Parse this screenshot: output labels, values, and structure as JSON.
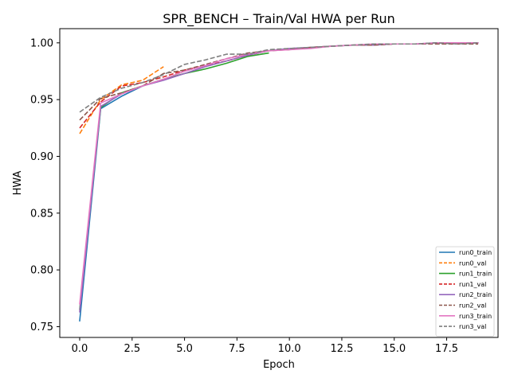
{
  "chart_data": {
    "type": "line",
    "title": "SPR_BENCH – Train/Val HWA per Run",
    "xlabel": "Epoch",
    "ylabel": "HWA",
    "xlim": [
      -0.95,
      19.95
    ],
    "ylim": [
      0.7405,
      1.0125
    ],
    "xticks": [
      0.0,
      2.5,
      5.0,
      7.5,
      10.0,
      12.5,
      15.0,
      17.5
    ],
    "xtick_labels": [
      "0.0",
      "2.5",
      "5.0",
      "7.5",
      "10.0",
      "12.5",
      "15.0",
      "17.5"
    ],
    "yticks": [
      0.75,
      0.8,
      0.85,
      0.9,
      0.95,
      1.0
    ],
    "ytick_labels": [
      "0.75",
      "0.80",
      "0.85",
      "0.90",
      "0.95",
      "1.00"
    ],
    "grid": false,
    "legend_position": "lower-right",
    "series": [
      {
        "name": "run0_train",
        "color": "#1f77b4",
        "dash": "solid",
        "x": [
          0,
          1,
          2,
          3,
          4
        ],
        "y": [
          0.755,
          0.942,
          0.953,
          0.962,
          0.968
        ]
      },
      {
        "name": "run0_val",
        "color": "#ff7f0e",
        "dash": "dashed",
        "x": [
          0,
          1,
          2,
          3,
          4
        ],
        "y": [
          0.92,
          0.95,
          0.963,
          0.967,
          0.979
        ]
      },
      {
        "name": "run1_train",
        "color": "#2ca02c",
        "dash": "solid",
        "x": [
          0,
          1,
          2,
          3,
          4,
          5,
          6,
          7,
          8,
          9
        ],
        "y": [
          0.765,
          0.943,
          0.956,
          0.962,
          0.968,
          0.973,
          0.977,
          0.982,
          0.988,
          0.991
        ]
      },
      {
        "name": "run1_val",
        "color": "#d62728",
        "dash": "dashed",
        "x": [
          0,
          1,
          2,
          3,
          4,
          5,
          6,
          7,
          8,
          9
        ],
        "y": [
          0.925,
          0.948,
          0.962,
          0.965,
          0.97,
          0.976,
          0.98,
          0.984,
          0.989,
          0.993
        ]
      },
      {
        "name": "run2_train",
        "color": "#9467bd",
        "dash": "solid",
        "x": [
          0,
          1,
          2,
          3,
          4,
          5,
          6,
          7,
          8,
          9,
          10,
          11,
          12,
          13,
          14,
          15,
          16,
          17,
          18,
          19
        ],
        "y": [
          0.763,
          0.944,
          0.955,
          0.962,
          0.967,
          0.973,
          0.979,
          0.984,
          0.989,
          0.993,
          0.995,
          0.996,
          0.997,
          0.998,
          0.998,
          0.999,
          0.999,
          1.0,
          1.0,
          1.0
        ]
      },
      {
        "name": "run2_val",
        "color": "#8c564b",
        "dash": "dashed",
        "x": [
          0,
          1,
          2,
          3,
          4,
          5,
          6,
          7,
          8,
          9,
          10,
          11,
          12,
          13,
          14,
          15,
          16,
          17,
          18,
          19
        ],
        "y": [
          0.932,
          0.951,
          0.956,
          0.962,
          0.973,
          0.976,
          0.981,
          0.986,
          0.991,
          0.993,
          0.994,
          0.996,
          0.997,
          0.998,
          0.998,
          0.999,
          0.999,
          0.999,
          0.999,
          0.999
        ]
      },
      {
        "name": "run3_train",
        "color": "#e377c2",
        "dash": "solid",
        "x": [
          0,
          1,
          2,
          3,
          4,
          5,
          6,
          7,
          8,
          9,
          10,
          11,
          12,
          13,
          14,
          15,
          16,
          17,
          18,
          19
        ],
        "y": [
          0.77,
          0.947,
          0.955,
          0.962,
          0.968,
          0.975,
          0.98,
          0.986,
          0.99,
          0.993,
          0.994,
          0.995,
          0.997,
          0.998,
          0.999,
          0.999,
          0.999,
          1.0,
          1.0,
          1.0
        ]
      },
      {
        "name": "run3_val",
        "color": "#7f7f7f",
        "dash": "dashed",
        "x": [
          0,
          1,
          2,
          3,
          4,
          5,
          6,
          7,
          8,
          9,
          10,
          11,
          12,
          13,
          14,
          15,
          16,
          17,
          18,
          19
        ],
        "y": [
          0.939,
          0.952,
          0.96,
          0.965,
          0.972,
          0.981,
          0.985,
          0.99,
          0.99,
          0.994,
          0.995,
          0.996,
          0.997,
          0.998,
          0.999,
          0.999,
          0.999,
          1.0,
          0.999,
          1.0
        ]
      }
    ]
  }
}
